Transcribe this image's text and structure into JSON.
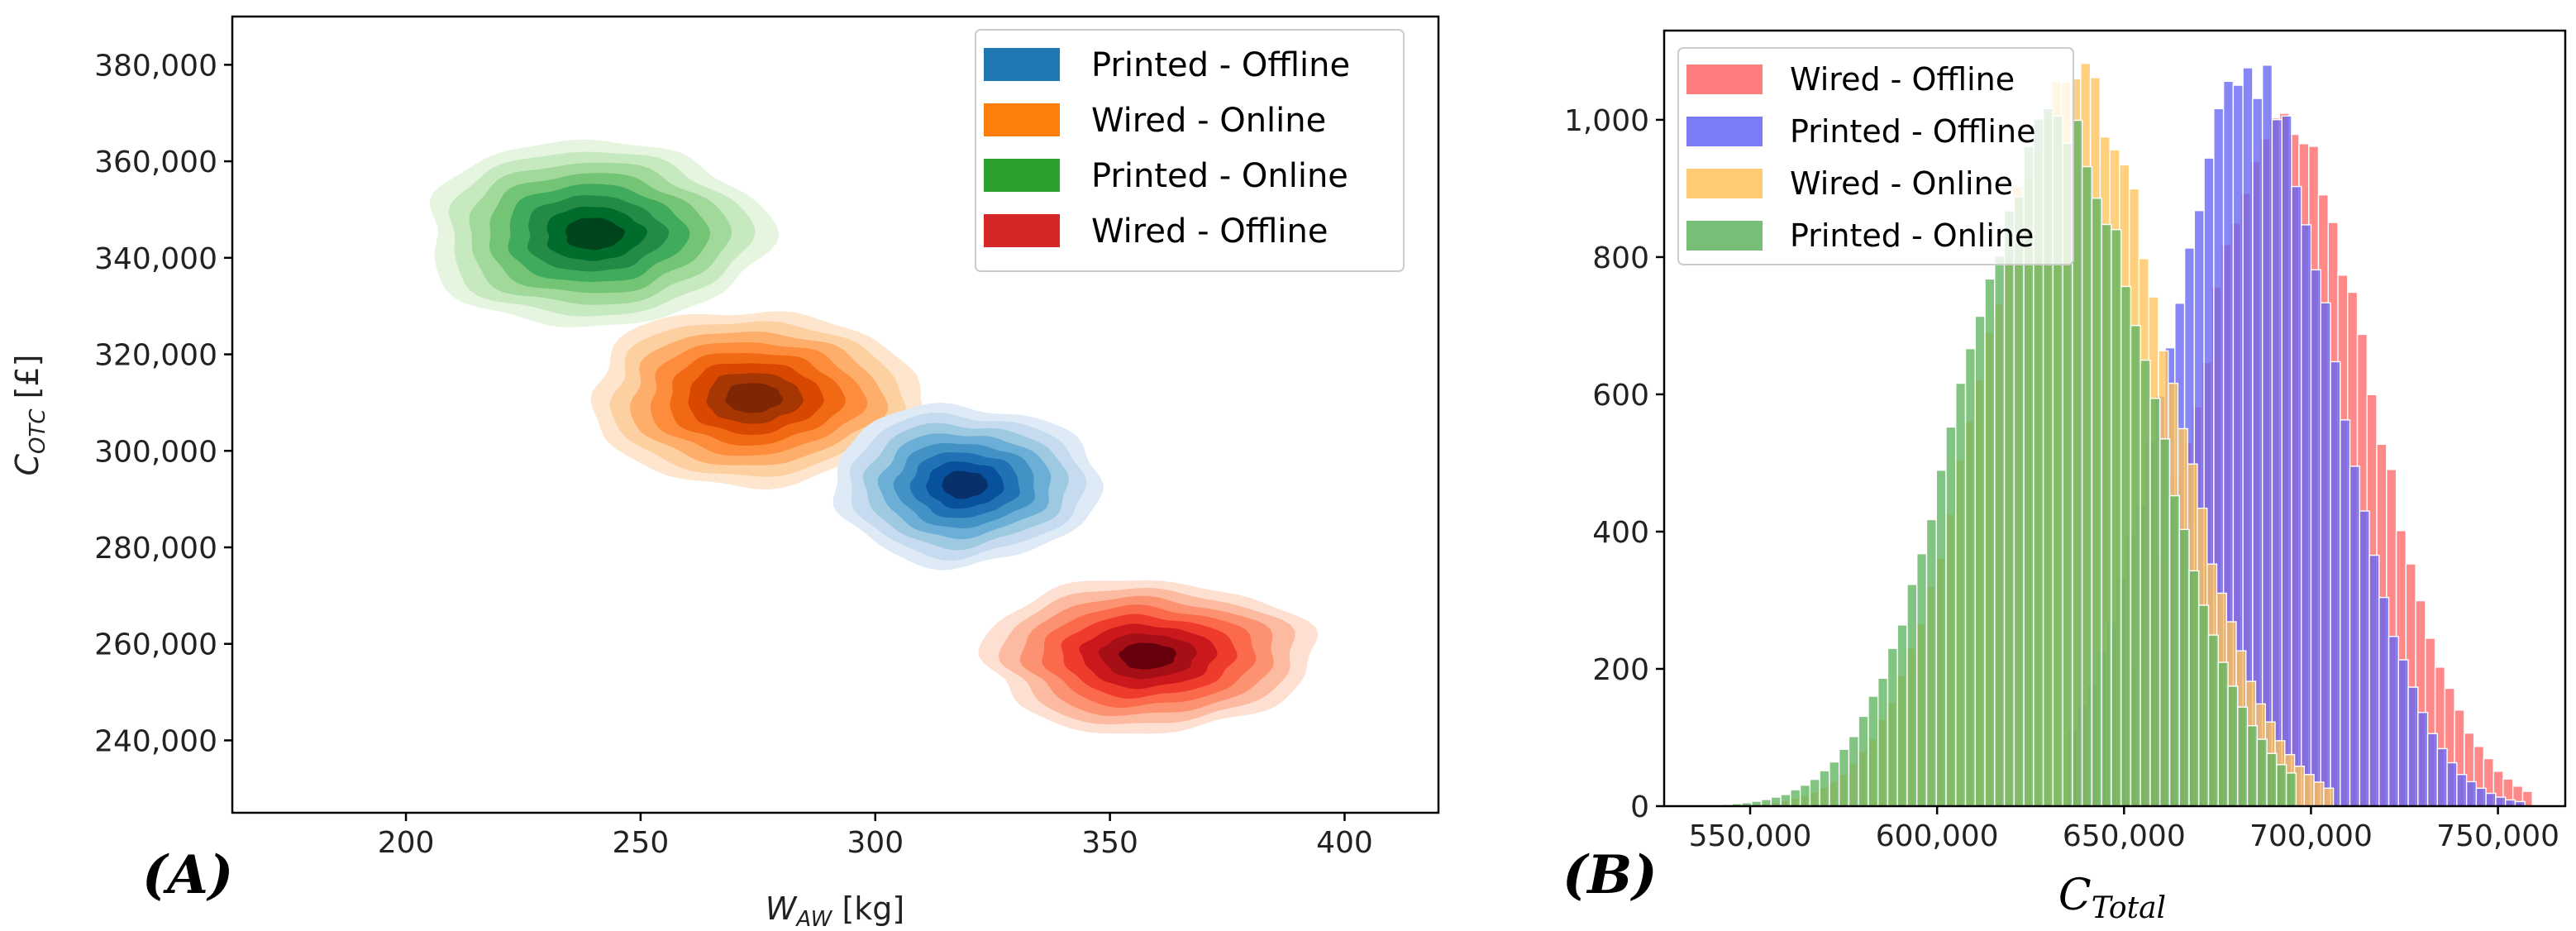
{
  "chart_data": [
    {
      "type": "kde-contour",
      "panel_label": "(A)",
      "xlabel_main": "W",
      "xlabel_sub": "AW",
      "xlabel_unit": " [kg]",
      "ylabel_main": "C",
      "ylabel_sub": "OTC",
      "ylabel_unit": " [£]",
      "xlim": [
        163,
        420
      ],
      "ylim": [
        225000,
        390000
      ],
      "xticks": [
        200,
        250,
        300,
        350,
        400
      ],
      "xtick_labels": [
        "200",
        "250",
        "300",
        "350",
        "400"
      ],
      "yticks": [
        240000,
        260000,
        280000,
        300000,
        320000,
        340000,
        360000,
        380000
      ],
      "ytick_labels": [
        "240,000",
        "260,000",
        "280,000",
        "300,000",
        "320,000",
        "340,000",
        "360,000",
        "380,000"
      ],
      "legend_position": "top-right",
      "legend": [
        {
          "label": "Printed - Offline",
          "color": "#1f77b4"
        },
        {
          "label": "Wired - Online",
          "color": "#ff7f0e"
        },
        {
          "label": "Printed - Online",
          "color": "#2ca02c"
        },
        {
          "label": "Wired - Offline",
          "color": "#d62728"
        }
      ],
      "series": [
        {
          "name": "Printed - Online",
          "center_x": 240,
          "center_y": 345000,
          "sd_x": 16,
          "sd_y": 8500,
          "colors": [
            "#e5f5e0",
            "#c7e9c0",
            "#a1d99b",
            "#74c476",
            "#41ab5d",
            "#238b45",
            "#006d2c",
            "#00441b"
          ]
        },
        {
          "name": "Wired - Online",
          "center_x": 274,
          "center_y": 311000,
          "sd_x": 15.5,
          "sd_y": 8000,
          "colors": [
            "#fee6ce",
            "#fdd0a2",
            "#fdae6b",
            "#fd8d3c",
            "#f16913",
            "#d94801",
            "#a63603",
            "#7f2704"
          ]
        },
        {
          "name": "Printed - Offline",
          "center_x": 319,
          "center_y": 293000,
          "sd_x": 12.5,
          "sd_y": 7300,
          "colors": [
            "#deebf7",
            "#c6dbef",
            "#9ecae1",
            "#6baed6",
            "#4292c6",
            "#2171b5",
            "#08519c",
            "#08306b"
          ]
        },
        {
          "name": "Wired - Offline",
          "center_x": 358,
          "center_y": 257500,
          "sd_x": 15.5,
          "sd_y": 7000,
          "colors": [
            "#fee0d2",
            "#fcbba1",
            "#fc9272",
            "#fb6a4a",
            "#ef3b2c",
            "#cb181d",
            "#a50f15",
            "#67000d"
          ]
        }
      ]
    },
    {
      "type": "histogram",
      "panel_label": "(B)",
      "xlabel_main": "C",
      "xlabel_sub": "Total",
      "xlim": [
        527000,
        768000
      ],
      "ylim": [
        0,
        1130
      ],
      "xticks": [
        550000,
        600000,
        650000,
        700000,
        750000
      ],
      "xtick_labels": [
        "550,000",
        "600,000",
        "650,000",
        "700,000",
        "750,000"
      ],
      "yticks": [
        0,
        200,
        400,
        600,
        800,
        1000
      ],
      "ytick_labels": [
        "0",
        "200",
        "400",
        "600",
        "800",
        "1,000"
      ],
      "bin_width": 2600,
      "legend_position": "top-left",
      "series": [
        {
          "name": "Wired - Offline",
          "color": "#ff6666",
          "mean": 693000,
          "sd": 23500,
          "peak": 990,
          "min": 650000,
          "max": 758000
        },
        {
          "name": "Printed - Offline",
          "color": "#6464f5",
          "mean": 684000,
          "sd": 22500,
          "peak": 1070,
          "min": 635000,
          "max": 755000
        },
        {
          "name": "Wired - Online",
          "color": "#ffc35a",
          "mean": 637000,
          "sd": 25000,
          "peak": 1060,
          "min": 550000,
          "max": 705000
        },
        {
          "name": "Printed - Online",
          "color": "#5fb35f",
          "mean": 632000,
          "sd": 25500,
          "peak": 990,
          "min": 540000,
          "max": 695000
        }
      ]
    }
  ]
}
